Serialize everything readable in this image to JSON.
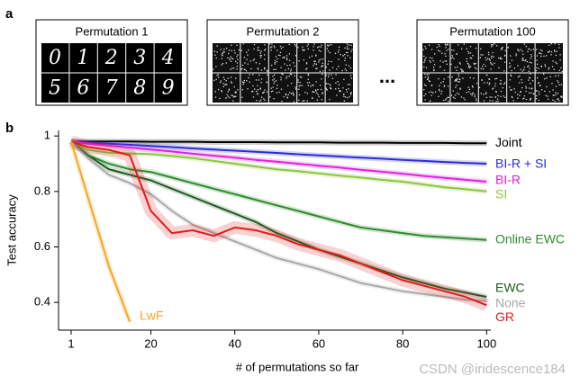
{
  "panel_a": {
    "label": "a",
    "titles": [
      "Permutation 1",
      "Permutation 2",
      "Permutation 100"
    ],
    "ellipsis": "...",
    "digits": [
      "0",
      "1",
      "2",
      "3",
      "4",
      "5",
      "6",
      "7",
      "8",
      "9"
    ]
  },
  "watermark": "CSDN @iridescence184",
  "chart_data": {
    "type": "line",
    "panel_label": "b",
    "x_label": "# of permutations so far",
    "y_label": "Test accuracy",
    "x": [
      1,
      5,
      10,
      15,
      20,
      25,
      30,
      35,
      40,
      45,
      50,
      55,
      60,
      65,
      70,
      75,
      80,
      85,
      90,
      95,
      100
    ],
    "xlim": [
      -2,
      101
    ],
    "xticks": [
      1,
      20,
      40,
      60,
      80,
      100
    ],
    "ylim": [
      0.3,
      1.02
    ],
    "yticks": [
      1,
      0.8,
      0.6,
      0.4
    ],
    "series": [
      {
        "name": "Joint",
        "color": "#000000",
        "values": [
          0.98,
          0.98,
          0.98,
          0.98,
          0.979,
          0.979,
          0.979,
          0.978,
          0.978,
          0.978,
          0.977,
          0.977,
          0.977,
          0.976,
          0.976,
          0.976,
          0.975,
          0.975,
          0.975,
          0.974,
          0.974
        ]
      },
      {
        "name": "BI-R + SI",
        "color": "#2b2bd6",
        "values": [
          0.98,
          0.976,
          0.972,
          0.968,
          0.964,
          0.96,
          0.955,
          0.951,
          0.947,
          0.943,
          0.939,
          0.934,
          0.93,
          0.926,
          0.922,
          0.918,
          0.914,
          0.91,
          0.906,
          0.903,
          0.9
        ]
      },
      {
        "name": "BI-R",
        "color": "#e020e0",
        "values": [
          0.98,
          0.972,
          0.965,
          0.958,
          0.951,
          0.944,
          0.936,
          0.929,
          0.922,
          0.914,
          0.907,
          0.9,
          0.893,
          0.886,
          0.878,
          0.871,
          0.864,
          0.856,
          0.849,
          0.842,
          0.835
        ]
      },
      {
        "name": "SI",
        "color": "#8cc63f",
        "values": [
          0.98,
          0.95,
          0.94,
          0.937,
          0.935,
          0.928,
          0.92,
          0.91,
          0.9,
          0.89,
          0.88,
          0.873,
          0.865,
          0.857,
          0.85,
          0.842,
          0.835,
          0.825,
          0.815,
          0.808,
          0.8
        ]
      },
      {
        "name": "Online EWC",
        "color": "#2e8b2e",
        "values": [
          0.98,
          0.93,
          0.9,
          0.88,
          0.87,
          0.85,
          0.83,
          0.81,
          0.79,
          0.77,
          0.75,
          0.73,
          0.71,
          0.69,
          0.67,
          0.66,
          0.65,
          0.64,
          0.635,
          0.63,
          0.625
        ]
      },
      {
        "name": "EWC",
        "color": "#1e5a1e",
        "values": [
          0.98,
          0.93,
          0.88,
          0.86,
          0.84,
          0.81,
          0.78,
          0.75,
          0.72,
          0.69,
          0.65,
          0.62,
          0.59,
          0.565,
          0.54,
          0.515,
          0.49,
          0.47,
          0.45,
          0.435,
          0.42
        ]
      },
      {
        "name": "None",
        "color": "#a8a8a8",
        "values": [
          0.98,
          0.92,
          0.86,
          0.83,
          0.79,
          0.73,
          0.68,
          0.65,
          0.62,
          0.59,
          0.56,
          0.54,
          0.52,
          0.495,
          0.47,
          0.455,
          0.44,
          0.43,
          0.42,
          0.41,
          0.405
        ]
      },
      {
        "name": "GR",
        "color": "#e01b1b",
        "values": [
          0.98,
          0.96,
          0.95,
          0.93,
          0.73,
          0.65,
          0.66,
          0.64,
          0.67,
          0.66,
          0.64,
          0.61,
          0.59,
          0.57,
          0.54,
          0.51,
          0.48,
          0.46,
          0.44,
          0.42,
          0.39
        ]
      },
      {
        "name": "LwF",
        "color": "#f5a623",
        "values": [
          0.98,
          0.78,
          0.53,
          0.33,
          null,
          null,
          null,
          null,
          null,
          null,
          null,
          null,
          null,
          null,
          null,
          null,
          null,
          null,
          null,
          null,
          null
        ]
      }
    ]
  }
}
